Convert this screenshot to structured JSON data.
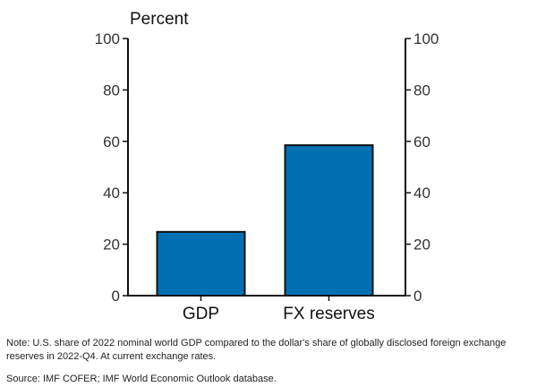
{
  "chart_data": {
    "type": "bar",
    "ylabel": "Percent",
    "categories": [
      "GDP",
      "FX reserves"
    ],
    "values": [
      24.8,
      58.5
    ],
    "ylim": [
      0,
      100
    ],
    "yticks": [
      0,
      20,
      40,
      60,
      80,
      100
    ],
    "dual_y_axis": true,
    "grid": false,
    "bar_color": "#0070b3"
  },
  "note": "Note: U.S. share of 2022 nominal world GDP compared to the dollar's share of globally disclosed foreign exchange reserves in 2022-Q4. At current exchange rates.",
  "source": "Source: IMF COFER; IMF World Economic Outlook database."
}
